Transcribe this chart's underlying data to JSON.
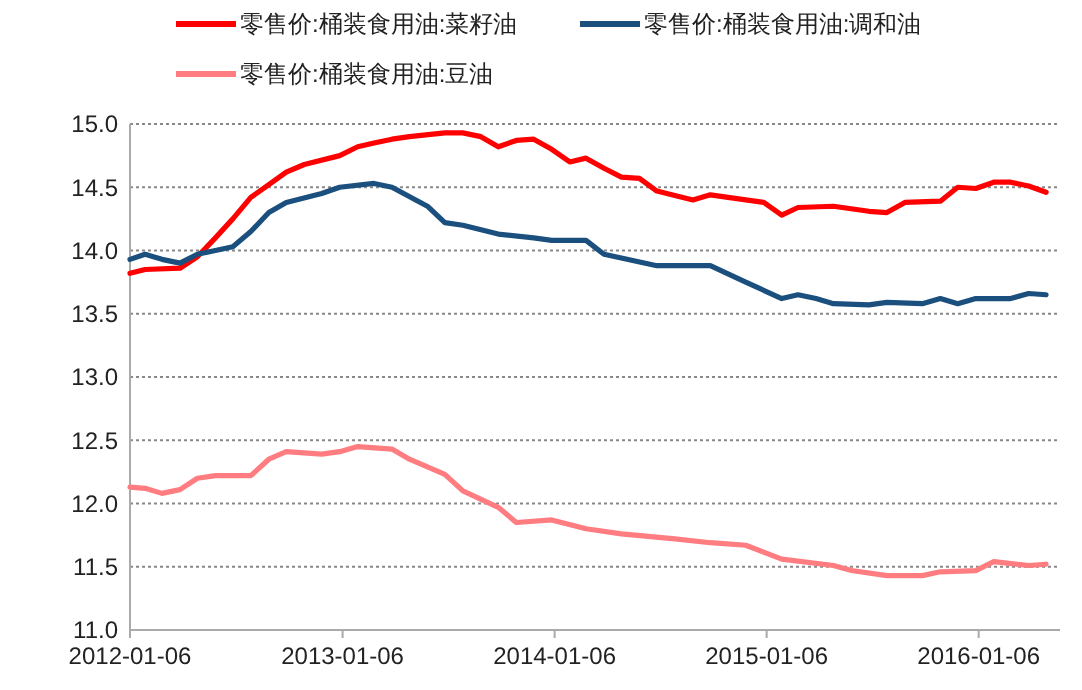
{
  "chart_data": {
    "type": "line",
    "legend": "top",
    "grid": "y",
    "line_style": "solid",
    "marker": "none",
    "xlim": [
      "2012-01-06",
      "2016-05-25"
    ],
    "xticks": [
      "2012-01-06",
      "2013-01-06",
      "2014-01-06",
      "2015-01-06",
      "2016-01-06"
    ],
    "ylim": [
      11.0,
      15.0
    ],
    "yticks": [
      {
        "value": 11,
        "label": "11.0"
      },
      {
        "value": 11.5,
        "label": "11.5"
      },
      {
        "value": 12,
        "label": "12.0"
      },
      {
        "value": 12.5,
        "label": "12.5"
      },
      {
        "value": 13,
        "label": "13.0"
      },
      {
        "value": 13.5,
        "label": "13.5"
      },
      {
        "value": 14,
        "label": "14.0"
      },
      {
        "value": 14.5,
        "label": "14.5"
      },
      {
        "value": 15,
        "label": "15.0"
      }
    ],
    "series": [
      {
        "name": "零售价:桶装食用油:菜籽油",
        "color": "#ff0000",
        "x": [
          "2012-01-06",
          "2012-02",
          "2012-04",
          "2012-05",
          "2012-06",
          "2012-07",
          "2012-08",
          "2012-09",
          "2012-10",
          "2012-11",
          "2013-01",
          "2013-02",
          "2013-03",
          "2013-04",
          "2013-05",
          "2013-07",
          "2013-08",
          "2013-09",
          "2013-10",
          "2013-11",
          "2013-12",
          "2014-01",
          "2014-02",
          "2014-03",
          "2014-04",
          "2014-05",
          "2014-06",
          "2014-07",
          "2014-09",
          "2014-10",
          "2014-12",
          "2015-01",
          "2015-02",
          "2015-03",
          "2015-05",
          "2015-07",
          "2015-08",
          "2015-09",
          "2015-11",
          "2015-12",
          "2016-01",
          "2016-02",
          "2016-03",
          "2016-04",
          "2016-05"
        ],
        "values": [
          13.82,
          13.85,
          13.86,
          13.95,
          14.1,
          14.25,
          14.42,
          14.52,
          14.62,
          14.68,
          14.75,
          14.82,
          14.85,
          14.88,
          14.9,
          14.93,
          14.93,
          14.9,
          14.82,
          14.87,
          14.88,
          14.8,
          14.7,
          14.73,
          14.65,
          14.58,
          14.57,
          14.47,
          14.4,
          14.44,
          14.4,
          14.38,
          14.28,
          14.34,
          14.35,
          14.31,
          14.3,
          14.38,
          14.39,
          14.5,
          14.49,
          14.54,
          14.54,
          14.51,
          14.46
        ]
      },
      {
        "name": "零售价:桶装食用油:调和油",
        "color": "#1b4f7e",
        "x": [
          "2012-01-06",
          "2012-02",
          "2012-03",
          "2012-04",
          "2012-05",
          "2012-06",
          "2012-07",
          "2012-08",
          "2012-09",
          "2012-10",
          "2012-12",
          "2013-01",
          "2013-03",
          "2013-04",
          "2013-06",
          "2013-07",
          "2013-08",
          "2013-10",
          "2013-12",
          "2014-01",
          "2014-03",
          "2014-04",
          "2014-07",
          "2014-10",
          "2014-12",
          "2015-02",
          "2015-03",
          "2015-04",
          "2015-05",
          "2015-07",
          "2015-08",
          "2015-10",
          "2015-11",
          "2015-12",
          "2016-01",
          "2016-03",
          "2016-04",
          "2016-05"
        ],
        "values": [
          13.93,
          13.97,
          13.93,
          13.9,
          13.97,
          14.0,
          14.03,
          14.15,
          14.3,
          14.38,
          14.45,
          14.5,
          14.53,
          14.5,
          14.35,
          14.22,
          14.2,
          14.13,
          14.1,
          14.08,
          14.08,
          13.97,
          13.88,
          13.88,
          13.75,
          13.62,
          13.65,
          13.62,
          13.58,
          13.57,
          13.59,
          13.58,
          13.62,
          13.58,
          13.62,
          13.62,
          13.66,
          13.65
        ]
      },
      {
        "name": "零售价:桶装食用油:豆油",
        "color": "#ff7c80",
        "x": [
          "2012-01-06",
          "2012-02",
          "2012-03",
          "2012-04",
          "2012-05",
          "2012-06",
          "2012-08",
          "2012-09",
          "2012-10",
          "2012-12",
          "2013-01",
          "2013-02",
          "2013-04",
          "2013-05",
          "2013-07",
          "2013-08",
          "2013-10",
          "2013-11",
          "2014-01",
          "2014-03",
          "2014-05",
          "2014-08",
          "2014-10",
          "2014-12",
          "2015-02",
          "2015-05",
          "2015-06",
          "2015-08",
          "2015-10",
          "2015-11",
          "2016-01",
          "2016-02",
          "2016-04",
          "2016-05"
        ],
        "values": [
          12.13,
          12.12,
          12.08,
          12.11,
          12.2,
          12.22,
          12.22,
          12.35,
          12.41,
          12.39,
          12.41,
          12.45,
          12.43,
          12.35,
          12.23,
          12.1,
          11.97,
          11.85,
          11.87,
          11.8,
          11.76,
          11.72,
          11.69,
          11.67,
          11.56,
          11.51,
          11.47,
          11.43,
          11.43,
          11.46,
          11.47,
          11.54,
          11.51,
          11.52
        ]
      }
    ]
  }
}
